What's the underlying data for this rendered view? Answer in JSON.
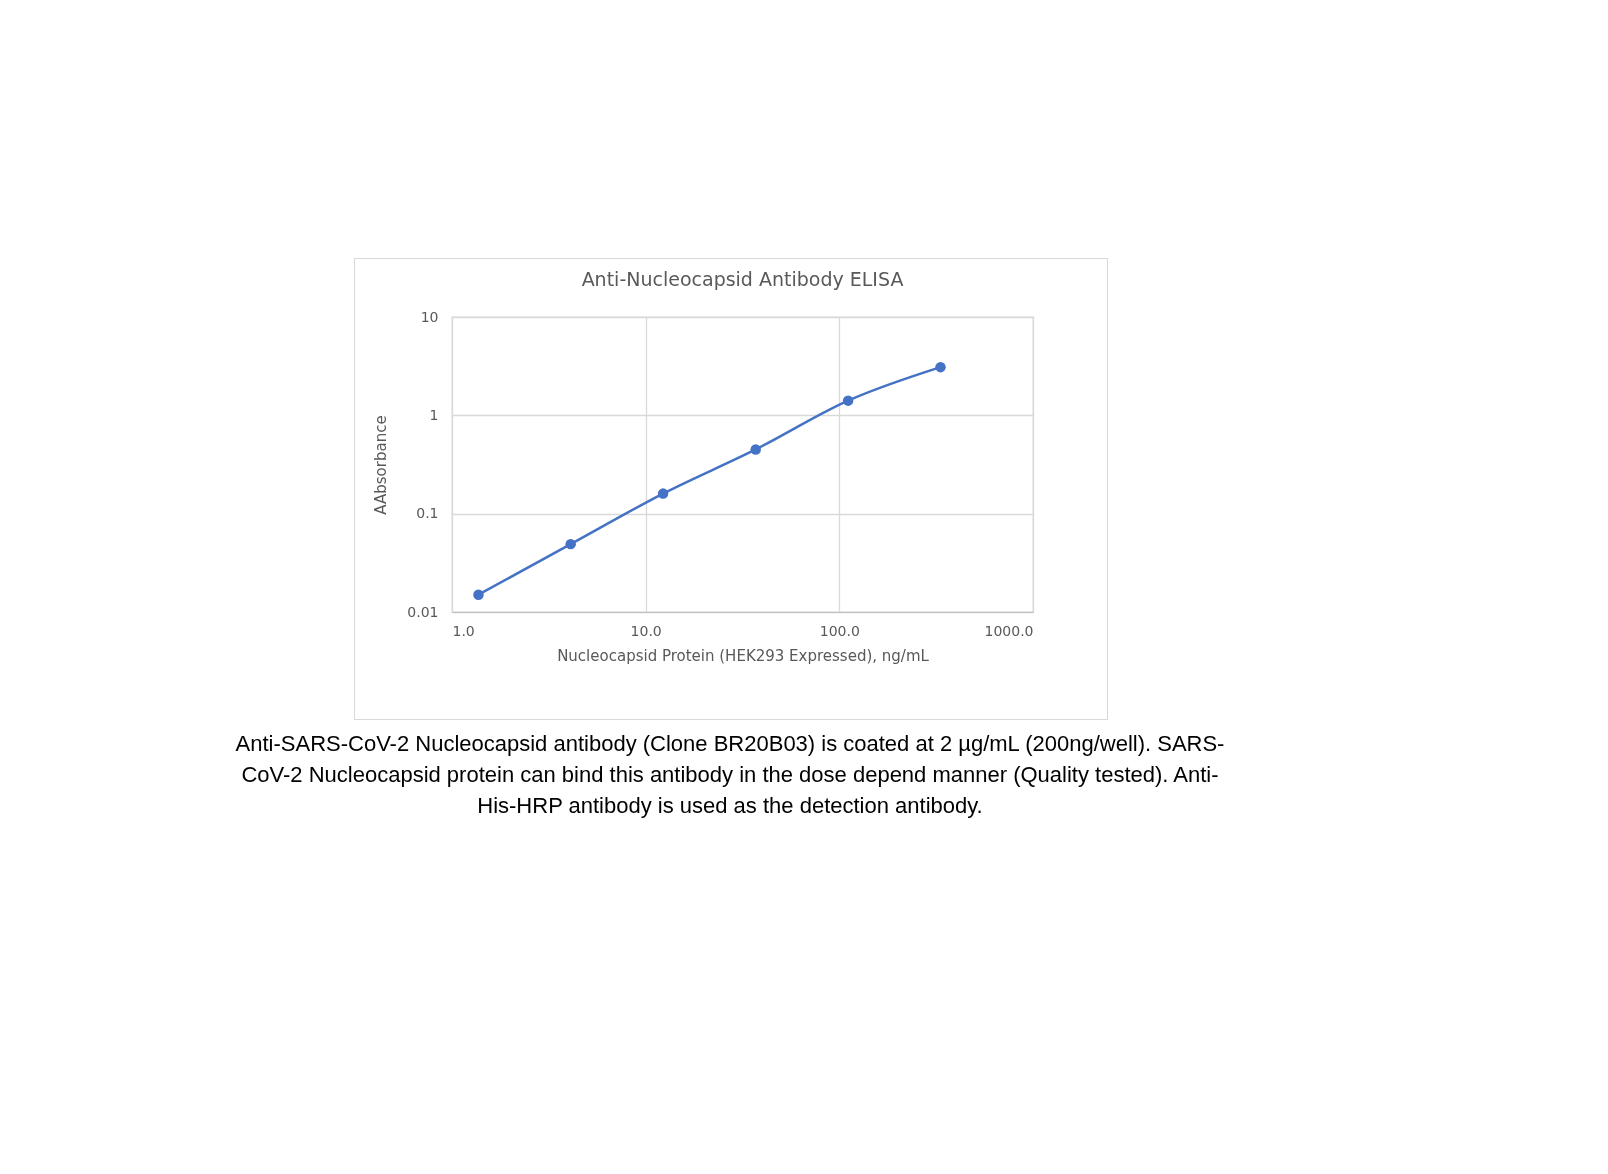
{
  "chart_data": {
    "type": "line",
    "title": "Anti-Nucleocapsid Antibody ELISA",
    "xlabel": "Nucleocapsid Protein (HEK293 Expressed), ng/mL",
    "ylabel": "AAbsorbance",
    "x": [
      1.37,
      4.1,
      12.3,
      37,
      111,
      333
    ],
    "series": [
      {
        "color": "#4472c4",
        "values": [
          0.015,
          0.049,
          0.16,
          0.45,
          1.41,
          3.09
        ]
      }
    ],
    "log": "xy",
    "xlim": [
      1,
      1000
    ],
    "ylim": [
      0.01,
      10
    ],
    "xticks": [
      {
        "value": 1,
        "label": "1.0"
      },
      {
        "value": 10,
        "label": "10.0"
      },
      {
        "value": 100,
        "label": "100.0"
      },
      {
        "value": 1000,
        "label": "1000.0"
      }
    ],
    "yticks": [
      0.01,
      0.1,
      1,
      10
    ],
    "grid": true,
    "marker": "circle",
    "line_style": "solid",
    "annotations": [
      "Anti-SARS-CoV-2 Nucleocapsid antibody (Clone BR20B03) is coated at 2 µg/mL (200ng/well). SARS-CoV-2 Nucleocapsid protein can bind this antibody in the dose depend manner (Quality tested). Anti-His-HRP antibody is used as the detection antibody."
    ]
  }
}
